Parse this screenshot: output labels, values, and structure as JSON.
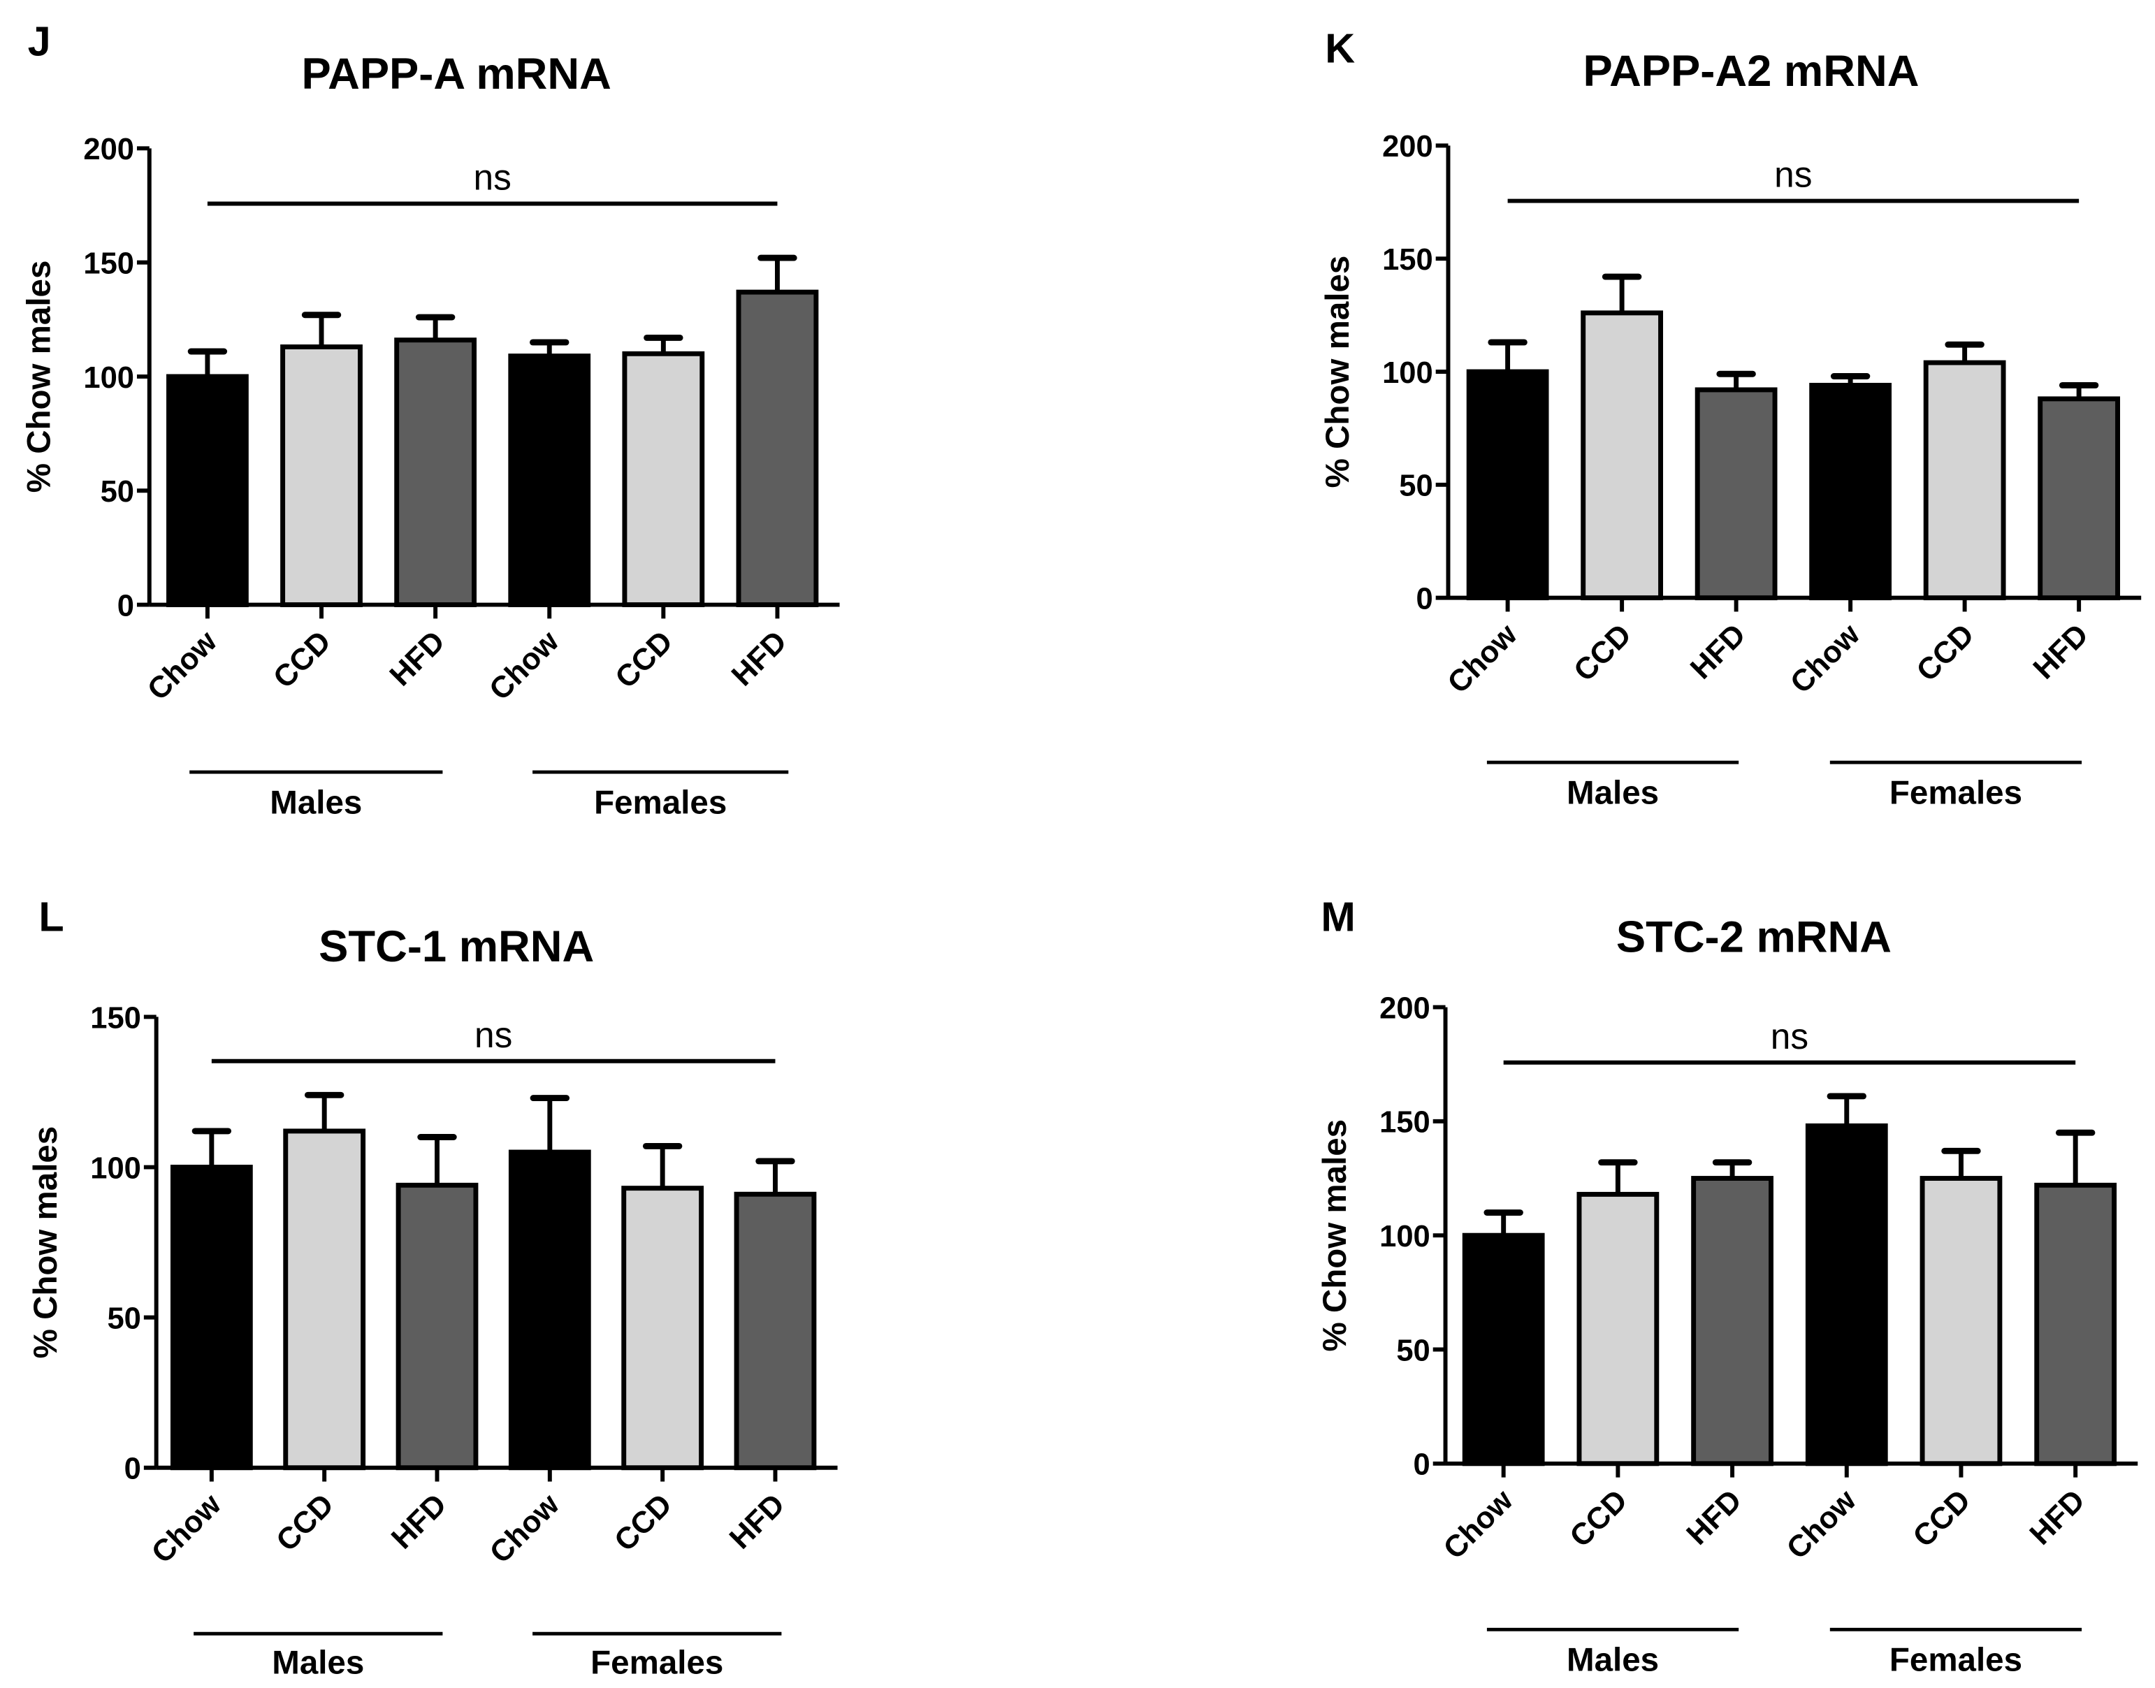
{
  "colors": {
    "chow": "#000000",
    "ccd": "#d4d4d4",
    "hfd": "#5e5e5e",
    "outline": "#000000"
  },
  "chart_data": [
    {
      "type": "bar",
      "panel": "J",
      "title": "PAPP-A mRNA",
      "ylabel": "% Chow males",
      "ylim": [
        0,
        200
      ],
      "yticks": [
        0,
        50,
        100,
        150,
        200
      ],
      "categories": [
        "Chow",
        "CCD",
        "HFD",
        "Chow",
        "CCD",
        "HFD"
      ],
      "groups": [
        "Males",
        "Females"
      ],
      "values": [
        100,
        113,
        116,
        109,
        110,
        137
      ],
      "errors": [
        11,
        14,
        10,
        6,
        7,
        15
      ],
      "annotation": "ns"
    },
    {
      "type": "bar",
      "panel": "K",
      "title": "PAPP-A2 mRNA",
      "ylabel": "% Chow males",
      "ylim": [
        0,
        200
      ],
      "yticks": [
        0,
        50,
        100,
        150,
        200
      ],
      "categories": [
        "Chow",
        "CCD",
        "HFD",
        "Chow",
        "CCD",
        "HFD"
      ],
      "groups": [
        "Males",
        "Females"
      ],
      "values": [
        100,
        126,
        92,
        94,
        104,
        88
      ],
      "errors": [
        13,
        16,
        7,
        4,
        8,
        6
      ],
      "annotation": "ns"
    },
    {
      "type": "bar",
      "panel": "L",
      "title": "STC-1 mRNA",
      "ylabel": "% Chow males",
      "ylim": [
        0,
        150
      ],
      "yticks": [
        0,
        50,
        100,
        150
      ],
      "categories": [
        "Chow",
        "CCD",
        "HFD",
        "Chow",
        "CCD",
        "HFD"
      ],
      "groups": [
        "Males",
        "Females"
      ],
      "values": [
        100,
        112,
        94,
        105,
        93,
        91
      ],
      "errors": [
        12,
        12,
        16,
        18,
        14,
        11
      ],
      "annotation": "ns"
    },
    {
      "type": "bar",
      "panel": "M",
      "title": "STC-2 mRNA",
      "ylabel": "% Chow males",
      "ylim": [
        0,
        200
      ],
      "yticks": [
        0,
        50,
        100,
        150,
        200
      ],
      "categories": [
        "Chow",
        "CCD",
        "HFD",
        "Chow",
        "CCD",
        "HFD"
      ],
      "groups": [
        "Males",
        "Females"
      ],
      "values": [
        100,
        118,
        125,
        148,
        125,
        122
      ],
      "errors": [
        10,
        14,
        7,
        13,
        12,
        23
      ],
      "annotation": "ns"
    }
  ]
}
